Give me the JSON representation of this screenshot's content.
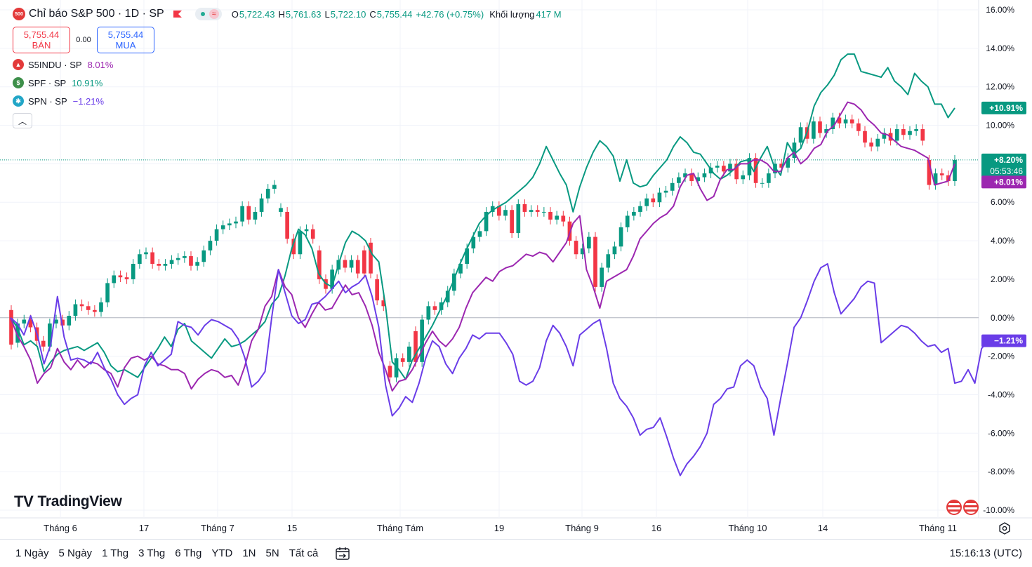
{
  "header": {
    "logo_text": "500",
    "title": "Chỉ báo S&P 500 · 1D · SP",
    "ohlc": [
      {
        "label": "O",
        "value": "5,722.43"
      },
      {
        "label": "H",
        "value": "5,761.63"
      },
      {
        "label": "L",
        "value": "5,722.10"
      },
      {
        "label": "C",
        "value": "5,755.44"
      }
    ],
    "change": "+42.76 (+0.75%)",
    "volume_label": "Khối lượng",
    "volume_value": "417 M"
  },
  "trade": {
    "sell_price": "5,755.44",
    "sell_label": "BÁN",
    "spread": "0.00",
    "buy_price": "5,755.44",
    "buy_label": "MUA"
  },
  "legend_series": [
    {
      "name": "S5INDU · SP",
      "value": "8.01%",
      "color": "#9c27b0",
      "icon": "factory-icon",
      "icon_bg": "#e33a3a"
    },
    {
      "name": "SPF · SP",
      "value": "10.91%",
      "color": "#089981",
      "icon": "finance-icon",
      "icon_bg": "#3d8f4a"
    },
    {
      "name": "SPN · SP",
      "value": "−1.21%",
      "color": "#6a3de8",
      "icon": "energy-icon",
      "icon_bg": "#22a6c7"
    }
  ],
  "brand": "TradingView",
  "ranges": [
    "1 Ngày",
    "5 Ngày",
    "1 Thg",
    "3 Thg",
    "6 Thg",
    "YTD",
    "1N",
    "5N",
    "Tất cả"
  ],
  "clock": "15:16:13 (UTC)",
  "colors": {
    "up": "#089981",
    "down": "#f23645",
    "spf": "#089981",
    "s5indu": "#9c27b0",
    "spn": "#6a3de8"
  },
  "chart_data": {
    "type": "line",
    "y_unit": "percent change",
    "ylim": [
      -10,
      16
    ],
    "y_ticks": [
      "16.00%",
      "14.00%",
      "12.00%",
      "10.00%",
      "8.00%",
      "6.00%",
      "4.00%",
      "2.00%",
      "0.00%",
      "-2.00%",
      "-4.00%",
      "-6.00%",
      "-8.00%",
      "-10.00%"
    ],
    "x_ticks": [
      "Tháng 6",
      "17",
      "Tháng 7",
      "15",
      "Tháng Tám",
      "19",
      "Tháng 9",
      "16",
      "Tháng 10",
      "14",
      "Tháng 11"
    ],
    "grid": true,
    "last_labels": {
      "spf": "+10.91%",
      "spx": "+8.20%",
      "countdown": "05:53:46",
      "s5indu": "+8.01%",
      "spn": "−1.21%"
    },
    "candles_pct": [
      [
        0.4,
        -1.4
      ],
      [
        -1.3,
        -0.3
      ],
      [
        -0.3,
        -0.1
      ],
      [
        -0.1,
        -0.5
      ],
      [
        -0.5,
        -1.2
      ],
      [
        -1.2,
        -1.5
      ],
      [
        -1.5,
        -0.3
      ],
      [
        -0.3,
        -0.1
      ],
      [
        -0.1,
        -0.4
      ],
      [
        -0.4,
        0.1
      ],
      [
        0.1,
        0.7
      ],
      [
        0.7,
        0.6
      ],
      [
        0.6,
        0.4
      ],
      [
        0.4,
        0.3
      ],
      [
        0.3,
        0.8
      ],
      [
        0.8,
        1.8
      ],
      [
        1.8,
        2.2
      ],
      [
        2.2,
        2.1
      ],
      [
        2.1,
        2.0
      ],
      [
        2.0,
        2.8
      ],
      [
        2.8,
        3.3
      ],
      [
        3.3,
        3.4
      ],
      [
        3.4,
        2.8
      ],
      [
        2.8,
        2.7
      ],
      [
        2.7,
        2.8
      ],
      [
        2.8,
        3.0
      ],
      [
        3.0,
        3.1
      ],
      [
        3.1,
        3.2
      ],
      [
        3.2,
        2.7
      ],
      [
        2.7,
        2.9
      ],
      [
        2.9,
        3.5
      ],
      [
        3.5,
        4.0
      ],
      [
        4.0,
        4.6
      ],
      [
        4.6,
        4.8
      ],
      [
        4.8,
        4.9
      ],
      [
        4.9,
        5.0
      ],
      [
        5.0,
        5.8
      ],
      [
        5.8,
        5.1
      ],
      [
        5.1,
        5.5
      ],
      [
        5.5,
        6.2
      ],
      [
        6.2,
        6.7
      ],
      [
        6.7,
        6.9
      ],
      [
        5.5,
        5.7
      ],
      [
        5.5,
        4.1
      ],
      [
        4.1,
        3.3
      ],
      [
        3.3,
        4.5
      ],
      [
        4.5,
        4.6
      ],
      [
        4.6,
        4.1
      ],
      [
        3.5,
        2.0
      ],
      [
        2.0,
        1.5
      ],
      [
        1.5,
        2.5
      ],
      [
        2.5,
        3.0
      ],
      [
        3.0,
        2.6
      ],
      [
        2.6,
        3.0
      ],
      [
        3.0,
        2.3
      ],
      [
        3.5,
        2.3
      ],
      [
        3.9,
        2.3
      ],
      [
        2.0,
        0.9
      ],
      [
        0.9,
        0.6
      ],
      [
        -2.5,
        -3.1
      ],
      [
        -3.1,
        -2.1
      ],
      [
        -2.1,
        -2.3
      ],
      [
        -2.3,
        -1.5
      ],
      [
        -0.7,
        -2.3
      ],
      [
        -2.3,
        -0.1
      ],
      [
        -0.1,
        0.6
      ],
      [
        0.6,
        0.4
      ],
      [
        0.4,
        0.8
      ],
      [
        0.8,
        1.4
      ],
      [
        1.4,
        2.3
      ],
      [
        2.3,
        2.8
      ],
      [
        2.8,
        3.6
      ],
      [
        3.6,
        4.2
      ],
      [
        4.2,
        4.5
      ],
      [
        4.5,
        5.5
      ],
      [
        5.5,
        5.8
      ],
      [
        5.8,
        5.3
      ],
      [
        5.3,
        5.6
      ],
      [
        5.6,
        4.4
      ],
      [
        4.4,
        5.9
      ],
      [
        5.9,
        5.5
      ],
      [
        5.5,
        5.6
      ],
      [
        5.6,
        5.5
      ],
      [
        5.5,
        5.5
      ],
      [
        5.5,
        5.1
      ],
      [
        5.1,
        5.3
      ],
      [
        5.3,
        5.0
      ],
      [
        5.0,
        4.0
      ],
      [
        4.0,
        3.3
      ],
      [
        3.3,
        3.6
      ],
      [
        3.6,
        4.2
      ],
      [
        4.2,
        1.6
      ],
      [
        1.6,
        2.6
      ],
      [
        2.6,
        3.3
      ],
      [
        3.3,
        3.7
      ],
      [
        3.7,
        4.7
      ],
      [
        4.7,
        5.3
      ],
      [
        5.3,
        5.5
      ],
      [
        5.5,
        5.8
      ],
      [
        5.8,
        6.2
      ],
      [
        6.2,
        6.0
      ],
      [
        6.0,
        6.5
      ],
      [
        6.5,
        6.6
      ],
      [
        6.6,
        7.0
      ],
      [
        7.0,
        7.3
      ],
      [
        7.3,
        7.5
      ],
      [
        7.5,
        7.1
      ],
      [
        7.1,
        7.3
      ],
      [
        7.3,
        7.5
      ],
      [
        7.5,
        7.8
      ],
      [
        7.8,
        7.9
      ],
      [
        7.9,
        7.6
      ],
      [
        7.6,
        8.0
      ],
      [
        8.0,
        7.2
      ],
      [
        7.2,
        7.4
      ],
      [
        7.4,
        8.3
      ],
      [
        8.3,
        7.0
      ],
      [
        7.0,
        7.0
      ],
      [
        7.0,
        7.5
      ],
      [
        7.5,
        8.0
      ],
      [
        8.0,
        7.8
      ],
      [
        7.8,
        8.3
      ],
      [
        8.3,
        9.1
      ],
      [
        9.1,
        9.9
      ],
      [
        9.9,
        9.3
      ],
      [
        9.3,
        10.2
      ],
      [
        10.2,
        9.6
      ],
      [
        9.6,
        9.8
      ],
      [
        9.8,
        10.4
      ],
      [
        10.4,
        10.1
      ],
      [
        10.1,
        10.3
      ],
      [
        10.3,
        10.1
      ],
      [
        10.1,
        9.7
      ],
      [
        9.7,
        9.1
      ],
      [
        9.1,
        8.9
      ],
      [
        8.9,
        9.3
      ],
      [
        9.3,
        9.6
      ],
      [
        9.6,
        9.2
      ],
      [
        9.2,
        9.8
      ],
      [
        9.8,
        9.5
      ],
      [
        9.5,
        9.7
      ],
      [
        9.7,
        9.8
      ],
      [
        9.8,
        9.2
      ],
      [
        8.2,
        6.9
      ],
      [
        6.9,
        7.5
      ],
      [
        7.5,
        7.4
      ],
      [
        7.4,
        7.1
      ],
      [
        7.1,
        8.2
      ]
    ],
    "series": [
      {
        "name": "SPF · SP",
        "color": "#089981",
        "values": [
          0.0,
          -0.5,
          -1.4,
          -1.2,
          -1.5,
          -2.8,
          -2.3,
          -1.9,
          -1.7,
          -1.6,
          -1.5,
          -1.7,
          -1.5,
          -1.3,
          -1.8,
          -2.5,
          -2.8,
          -2.7,
          -2.9,
          -3.1,
          -2.6,
          -2.1,
          -1.6,
          -1.0,
          -1.5,
          -0.6,
          -0.3,
          -1.2,
          -1.5,
          -1.8,
          -2.1,
          -1.6,
          -1.1,
          -1.5,
          -1.4,
          -1.2,
          -0.9,
          -0.6,
          -0.2,
          0.7,
          1.1,
          2.2,
          3.6,
          4.6,
          4.3,
          3.6,
          2.3,
          1.8,
          1.6,
          2.8,
          3.9,
          4.5,
          4.3,
          4.0,
          3.3,
          2.9,
          0.6,
          -2.3,
          -2.7,
          -3.2,
          -2.2,
          -1.6,
          -1.0,
          -0.4,
          0.3,
          1.0,
          1.8,
          2.7,
          3.5,
          4.2,
          4.9,
          5.3,
          5.6,
          5.8,
          6.0,
          6.3,
          6.6,
          6.9,
          7.3,
          8.0,
          8.9,
          8.2,
          7.5,
          6.9,
          5.5,
          6.8,
          7.8,
          8.6,
          9.2,
          8.9,
          8.4,
          7.1,
          8.2,
          7.0,
          6.8,
          6.9,
          7.4,
          7.8,
          8.2,
          8.9,
          9.4,
          9.1,
          8.6,
          8.5,
          8.0,
          7.5,
          7.2,
          7.4,
          7.7,
          8.1,
          8.2,
          7.6,
          8.3,
          8.9,
          7.9,
          7.4,
          9.1,
          8.5,
          8.8,
          9.7,
          11.0,
          11.7,
          12.1,
          12.6,
          13.4,
          13.7,
          13.7,
          12.8,
          12.7,
          12.6,
          12.5,
          13.0,
          12.3,
          12.0,
          11.6,
          12.7,
          12.3,
          12.0,
          11.1,
          11.1,
          10.4,
          10.9
        ]
      },
      {
        "name": "S5INDU · SP",
        "color": "#9c27b0",
        "values": [
          0.0,
          -0.9,
          -1.5,
          -2.2,
          -3.4,
          -2.9,
          -2.6,
          -1.6,
          -2.3,
          -2.7,
          -2.2,
          -2.6,
          -2.3,
          -2.4,
          -2.7,
          -2.9,
          -3.6,
          -2.6,
          -2.1,
          -2.0,
          -2.2,
          -2.0,
          -2.4,
          -2.5,
          -2.7,
          -2.7,
          -2.9,
          -3.7,
          -3.2,
          -2.9,
          -2.7,
          -2.8,
          -3.1,
          -3.0,
          -3.5,
          -2.5,
          -1.2,
          -0.6,
          0.6,
          1.1,
          2.5,
          1.6,
          1.2,
          0.0,
          -0.5,
          0.2,
          0.8,
          0.4,
          0.5,
          1.1,
          1.7,
          1.2,
          1.3,
          0.6,
          -0.4,
          -1.8,
          -2.7,
          -3.8,
          -3.3,
          -3.2,
          -2.7,
          -2.0,
          -1.3,
          -0.7,
          -1.2,
          -1.5,
          -1.1,
          -0.5,
          0.5,
          1.3,
          1.7,
          2.1,
          1.9,
          2.4,
          2.6,
          2.7,
          3.0,
          3.3,
          3.2,
          3.4,
          3.3,
          2.9,
          3.4,
          3.9,
          4.9,
          5.3,
          2.5,
          1.6,
          0.5,
          1.9,
          2.1,
          2.3,
          2.5,
          3.2,
          4.1,
          4.5,
          4.9,
          5.2,
          5.4,
          5.8,
          6.8,
          7.4,
          7.5,
          6.7,
          6.1,
          6.3,
          7.2,
          7.7,
          7.7,
          8.0,
          8.0,
          8.2,
          8.2,
          8.0,
          7.6,
          7.6,
          8.3,
          8.6,
          8.0,
          8.3,
          8.8,
          9.0,
          9.7,
          10.0,
          10.6,
          11.2,
          11.1,
          10.8,
          10.3,
          10.0,
          9.6,
          9.5,
          9.2,
          8.9,
          8.8,
          8.7,
          8.5,
          8.3,
          6.9,
          7.0,
          7.1,
          8.0
        ]
      },
      {
        "name": "SPN · SP",
        "color": "#6a3de8",
        "values": [
          0.0,
          -0.3,
          -0.9,
          0.1,
          -0.9,
          -2.4,
          -1.4,
          1.1,
          -1.0,
          -2.2,
          -2.1,
          -2.2,
          -2.4,
          -1.8,
          -2.6,
          -3.2,
          -4.0,
          -4.5,
          -4.2,
          -4.0,
          -2.5,
          -1.8,
          -2.5,
          -2.2,
          -1.9,
          -0.2,
          -0.4,
          -0.5,
          -0.9,
          -0.4,
          -0.1,
          -0.2,
          -0.4,
          -0.6,
          -1.1,
          -2.1,
          -3.6,
          -3.3,
          -2.8,
          0.0,
          2.5,
          1.3,
          0.1,
          -0.3,
          -0.1,
          0.7,
          0.8,
          1.1,
          1.5,
          1.9,
          1.3,
          1.6,
          1.8,
          2.2,
          1.1,
          -0.5,
          -3.5,
          -5.1,
          -4.7,
          -4.1,
          -4.4,
          -3.4,
          -2.1,
          -1.2,
          -1.5,
          -2.4,
          -2.9,
          -2.1,
          -1.6,
          -0.9,
          -1.1,
          -0.8,
          -0.8,
          -0.8,
          -1.3,
          -1.9,
          -3.3,
          -3.5,
          -3.3,
          -2.6,
          -1.2,
          -0.4,
          -0.8,
          -1.5,
          -2.5,
          -0.9,
          -0.6,
          -0.3,
          -0.1,
          -1.6,
          -3.4,
          -4.2,
          -4.6,
          -5.2,
          -6.1,
          -5.8,
          -5.7,
          -5.2,
          -6.2,
          -7.3,
          -8.2,
          -7.6,
          -7.2,
          -6.7,
          -6.0,
          -4.5,
          -4.2,
          -3.7,
          -3.6,
          -2.5,
          -2.2,
          -2.5,
          -3.6,
          -4.2,
          -6.1,
          -4.2,
          -2.4,
          -0.5,
          0.0,
          0.9,
          1.9,
          2.6,
          2.8,
          1.3,
          0.2,
          0.6,
          1.0,
          1.6,
          1.9,
          1.8,
          -1.3,
          -1.0,
          -0.7,
          -0.4,
          -0.5,
          -0.8,
          -1.2,
          -1.5,
          -1.4,
          -1.8,
          -1.6,
          -3.4,
          -3.3,
          -2.7,
          -3.4,
          -1.6,
          -1.2
        ]
      }
    ]
  }
}
